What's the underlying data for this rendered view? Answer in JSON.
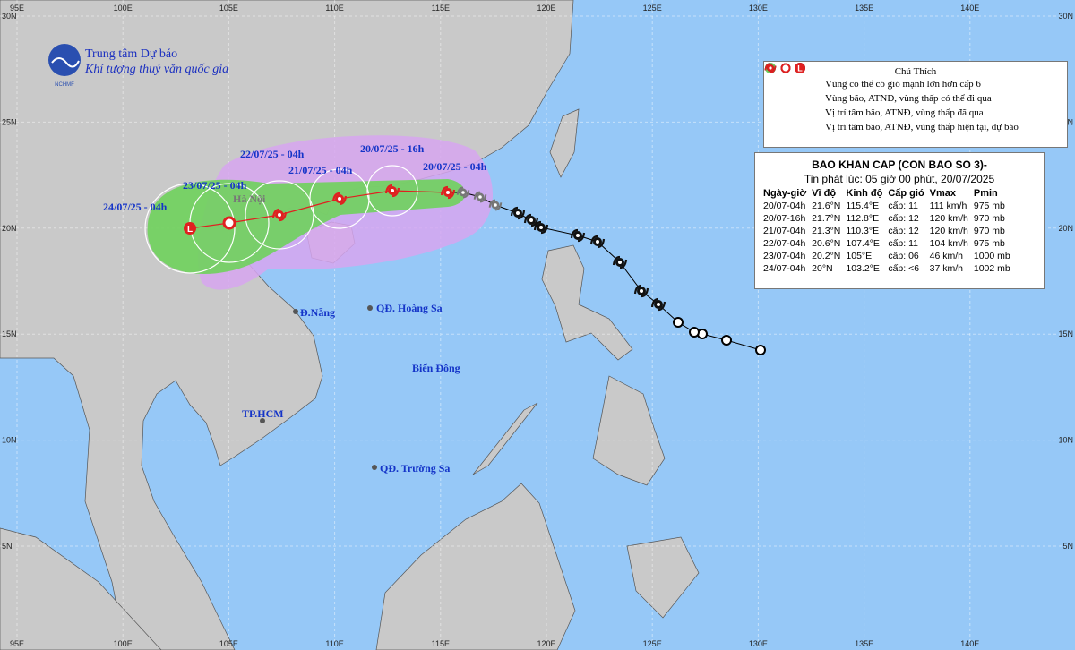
{
  "header": {
    "org_line1": "Trung tâm Dự báo",
    "org_line2": "Khí tượng thuỷ văn quốc gia",
    "logo_text": "NCHMF"
  },
  "axes": {
    "lon_labels": [
      "95E",
      "100E",
      "105E",
      "110E",
      "115E",
      "120E",
      "125E",
      "130E",
      "135E",
      "140E"
    ],
    "lat_labels": [
      "30N",
      "25N",
      "20N",
      "15N",
      "10N",
      "5N"
    ]
  },
  "legend": {
    "title": "Chú Thích",
    "low_symbol": "L",
    "items": [
      "Vùng có thể có gió mạnh lớn hơn cấp 6",
      "Vùng bão, ATNĐ, vùng thấp có thể đi qua",
      "Vị trí tâm bão, ATNĐ, vùng thấp đã qua",
      "Vị trí tâm bão, ATNĐ, vùng thấp hiện tại, dự báo"
    ]
  },
  "bulletin": {
    "title": "BAO KHAN CAP (CON BAO SO 3)-",
    "issued": "Tin phát lúc: 05 giờ 00 phút, 20/07/2025",
    "columns": [
      "Ngày-giờ",
      "Vĩ độ",
      "Kinh độ",
      "Cấp gió",
      "Vmax",
      "Pmin"
    ],
    "rows": [
      [
        "20/07-04h",
        "21.6°N",
        "115.4°E",
        "cấp: 11",
        "111 km/h",
        "975 mb"
      ],
      [
        "20/07-16h",
        "21.7°N",
        "112.8°E",
        "cấp: 12",
        "120 km/h",
        "970 mb"
      ],
      [
        "21/07-04h",
        "21.3°N",
        "110.3°E",
        "cấp: 12",
        "120 km/h",
        "970 mb"
      ],
      [
        "22/07-04h",
        "20.6°N",
        "107.4°E",
        "cấp: 11",
        "104 km/h",
        "975 mb"
      ],
      [
        "23/07-04h",
        "20.2°N",
        "105°E",
        "cấp: 06",
        "46 km/h",
        "1000 mb"
      ],
      [
        "24/07-04h",
        "20°N",
        "103.2°E",
        "cấp: <6",
        "37 km/h",
        "1002 mb"
      ]
    ]
  },
  "track_labels": [
    "20/07/25 - 04h",
    "20/07/25 - 16h",
    "21/07/25 - 04h",
    "22/07/25 - 04h",
    "23/07/25 - 04h",
    "24/07/25 - 04h"
  ],
  "places": {
    "ha_noi": "Hà Nội",
    "da_nang": "Đ.Nẵng",
    "hoang_sa": "QĐ. Hoàng Sa",
    "hcm": "TP.HCM",
    "truong_sa": "QĐ. Trường Sa",
    "bien_dong": "Biển Đông"
  }
}
